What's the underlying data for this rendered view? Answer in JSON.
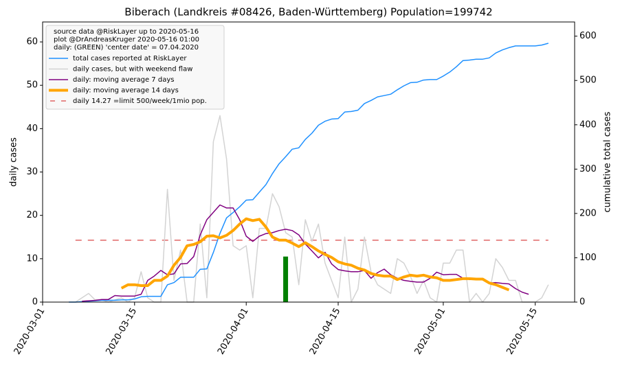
{
  "chart_data": {
    "type": "line",
    "title": "Biberach (Landkreis #08426, Baden-Württemberg) Population=199742",
    "ylabel": "daily cases",
    "ylabel_color": "purple",
    "y2label": "cumulative total cases",
    "y2label_color": "#1e90ff",
    "legend_title": [
      "source data @RiskLayer up to 2020-05-16",
      "plot @DrAndreasKruger 2020-05-16 01:00",
      "daily: (GREEN) 'center date' = 07.04.2020"
    ],
    "legend": "upper left",
    "xlim": [
      "2020-03-01",
      "2020-05-21"
    ],
    "xticks": [
      "2020-03-01",
      "2020-03-15",
      "2020-04-01",
      "2020-04-15",
      "2020-05-01",
      "2020-05-15"
    ],
    "ylim": [
      0,
      64.6
    ],
    "yticks": [
      0,
      10,
      20,
      30,
      40,
      50,
      60
    ],
    "y2lim": [
      0,
      632
    ],
    "y2ticks": [
      0,
      100,
      200,
      300,
      400,
      500,
      600
    ],
    "x": [
      "2020-03-05",
      "2020-03-06",
      "2020-03-07",
      "2020-03-08",
      "2020-03-09",
      "2020-03-10",
      "2020-03-11",
      "2020-03-12",
      "2020-03-13",
      "2020-03-14",
      "2020-03-15",
      "2020-03-16",
      "2020-03-17",
      "2020-03-18",
      "2020-03-19",
      "2020-03-20",
      "2020-03-21",
      "2020-03-22",
      "2020-03-23",
      "2020-03-24",
      "2020-03-25",
      "2020-03-26",
      "2020-03-27",
      "2020-03-28",
      "2020-03-29",
      "2020-03-30",
      "2020-03-31",
      "2020-04-01",
      "2020-04-02",
      "2020-04-03",
      "2020-04-04",
      "2020-04-05",
      "2020-04-06",
      "2020-04-07",
      "2020-04-08",
      "2020-04-09",
      "2020-04-10",
      "2020-04-11",
      "2020-04-12",
      "2020-04-13",
      "2020-04-14",
      "2020-04-15",
      "2020-04-16",
      "2020-04-17",
      "2020-04-18",
      "2020-04-19",
      "2020-04-20",
      "2020-04-21",
      "2020-04-22",
      "2020-04-23",
      "2020-04-24",
      "2020-04-25",
      "2020-04-26",
      "2020-04-27",
      "2020-04-28",
      "2020-04-29",
      "2020-04-30",
      "2020-05-01",
      "2020-05-02",
      "2020-05-03",
      "2020-05-04",
      "2020-05-05",
      "2020-05-06",
      "2020-05-07",
      "2020-05-08",
      "2020-05-09",
      "2020-05-10",
      "2020-05-11",
      "2020-05-12",
      "2020-05-13",
      "2020-05-14",
      "2020-05-15",
      "2020-05-16",
      "2020-05-17"
    ],
    "series": [
      {
        "name": "total cases reported at RiskLayer",
        "color": "#1e90ff",
        "width": 1.5,
        "axis": "y2",
        "values": [
          0,
          0,
          1,
          2,
          3,
          4,
          4,
          4,
          5,
          5,
          7,
          12,
          13,
          13,
          13,
          39,
          44,
          56,
          56,
          56,
          74,
          75,
          112,
          155,
          190,
          202,
          215,
          230,
          231,
          248,
          265,
          290,
          312,
          328,
          345,
          348,
          367,
          381,
          399,
          408,
          413,
          414,
          429,
          430,
          433,
          448,
          455,
          463,
          466,
          469,
          479,
          488,
          495,
          496,
          501,
          502,
          502,
          510,
          519,
          531,
          545,
          546,
          548,
          548,
          551,
          562,
          569,
          574,
          578,
          578,
          578,
          578,
          580,
          584
        ]
      },
      {
        "name": "daily cases, but with weekend flaw",
        "color": "#d3d3d3",
        "width": 1.5,
        "values": [
          0,
          0,
          1,
          2,
          0.5,
          0.5,
          0,
          0.5,
          1,
          0,
          1,
          7,
          1,
          0,
          0,
          26,
          5,
          12,
          0,
          0,
          18,
          1,
          37,
          43,
          33,
          13,
          12,
          13,
          1,
          17,
          17,
          25,
          22,
          16,
          15,
          4,
          19,
          14,
          18,
          9,
          5,
          1,
          15,
          0,
          3,
          15,
          7,
          4,
          3,
          2,
          10,
          9,
          6,
          2,
          5,
          1,
          0,
          9,
          9,
          12,
          12,
          0,
          2,
          0,
          2,
          10,
          8,
          5,
          5,
          0,
          0,
          0,
          1,
          4
        ]
      },
      {
        "name": "daily: moving average 7 days",
        "color": "purple",
        "width": 1.5,
        "values": [
          null,
          null,
          0.2,
          0.3,
          0.4,
          0.6,
          0.6,
          1.5,
          1.4,
          1.4,
          1.4,
          1.8,
          5,
          6,
          7.3,
          6.3,
          6.5,
          8.8,
          8.9,
          10.5,
          15.5,
          19,
          20.7,
          22.4,
          21.7,
          21.7,
          19,
          15.2,
          14,
          15.2,
          15.8,
          16,
          16.5,
          16.8,
          16.5,
          15.5,
          13.4,
          11.8,
          10.2,
          11.5,
          8.8,
          7.5,
          7.2,
          7,
          7,
          7.3,
          5.5,
          6.8,
          7.6,
          6.3,
          5.5,
          5,
          4.8,
          4.6,
          4.6,
          5.5,
          6.9,
          6.3,
          6.4,
          6.4,
          5.5,
          5.2,
          5.2,
          5.2,
          4.4,
          4.5,
          4.3,
          4.2,
          3.1,
          2.3,
          1.8,
          null,
          null,
          null
        ]
      },
      {
        "name": "daily: moving average 14 days",
        "color": "orange",
        "width": 4,
        "values": [
          null,
          null,
          null,
          null,
          null,
          null,
          null,
          null,
          3.2,
          4,
          4,
          3.8,
          3.8,
          5,
          5,
          6,
          8.5,
          10.3,
          13,
          13.3,
          13.9,
          15.2,
          15.3,
          14.8,
          15.4,
          16.5,
          18,
          19.2,
          18.8,
          19.1,
          17.3,
          15,
          14.3,
          14.3,
          13.6,
          12.8,
          13.7,
          12.8,
          11.8,
          11,
          10.3,
          9.3,
          8.8,
          8.5,
          7.8,
          7.4,
          6.6,
          6.2,
          6,
          6,
          5.2,
          5.8,
          6.2,
          6,
          6.2,
          5.8,
          5.6,
          5,
          5,
          5.2,
          5.4,
          5.4,
          5.3,
          5.3,
          4.4,
          4,
          3.4,
          2.8,
          null,
          null,
          null,
          null,
          null,
          null
        ]
      }
    ],
    "reference_line": {
      "name": "daily 14.27 =limit 500/week/1mio pop.",
      "value": 14.27,
      "color": "#e06666",
      "x_range": [
        "2020-03-06",
        "2020-05-17"
      ]
    },
    "highlight": {
      "x": "2020-04-07",
      "value": 10.5,
      "color": "green"
    }
  }
}
